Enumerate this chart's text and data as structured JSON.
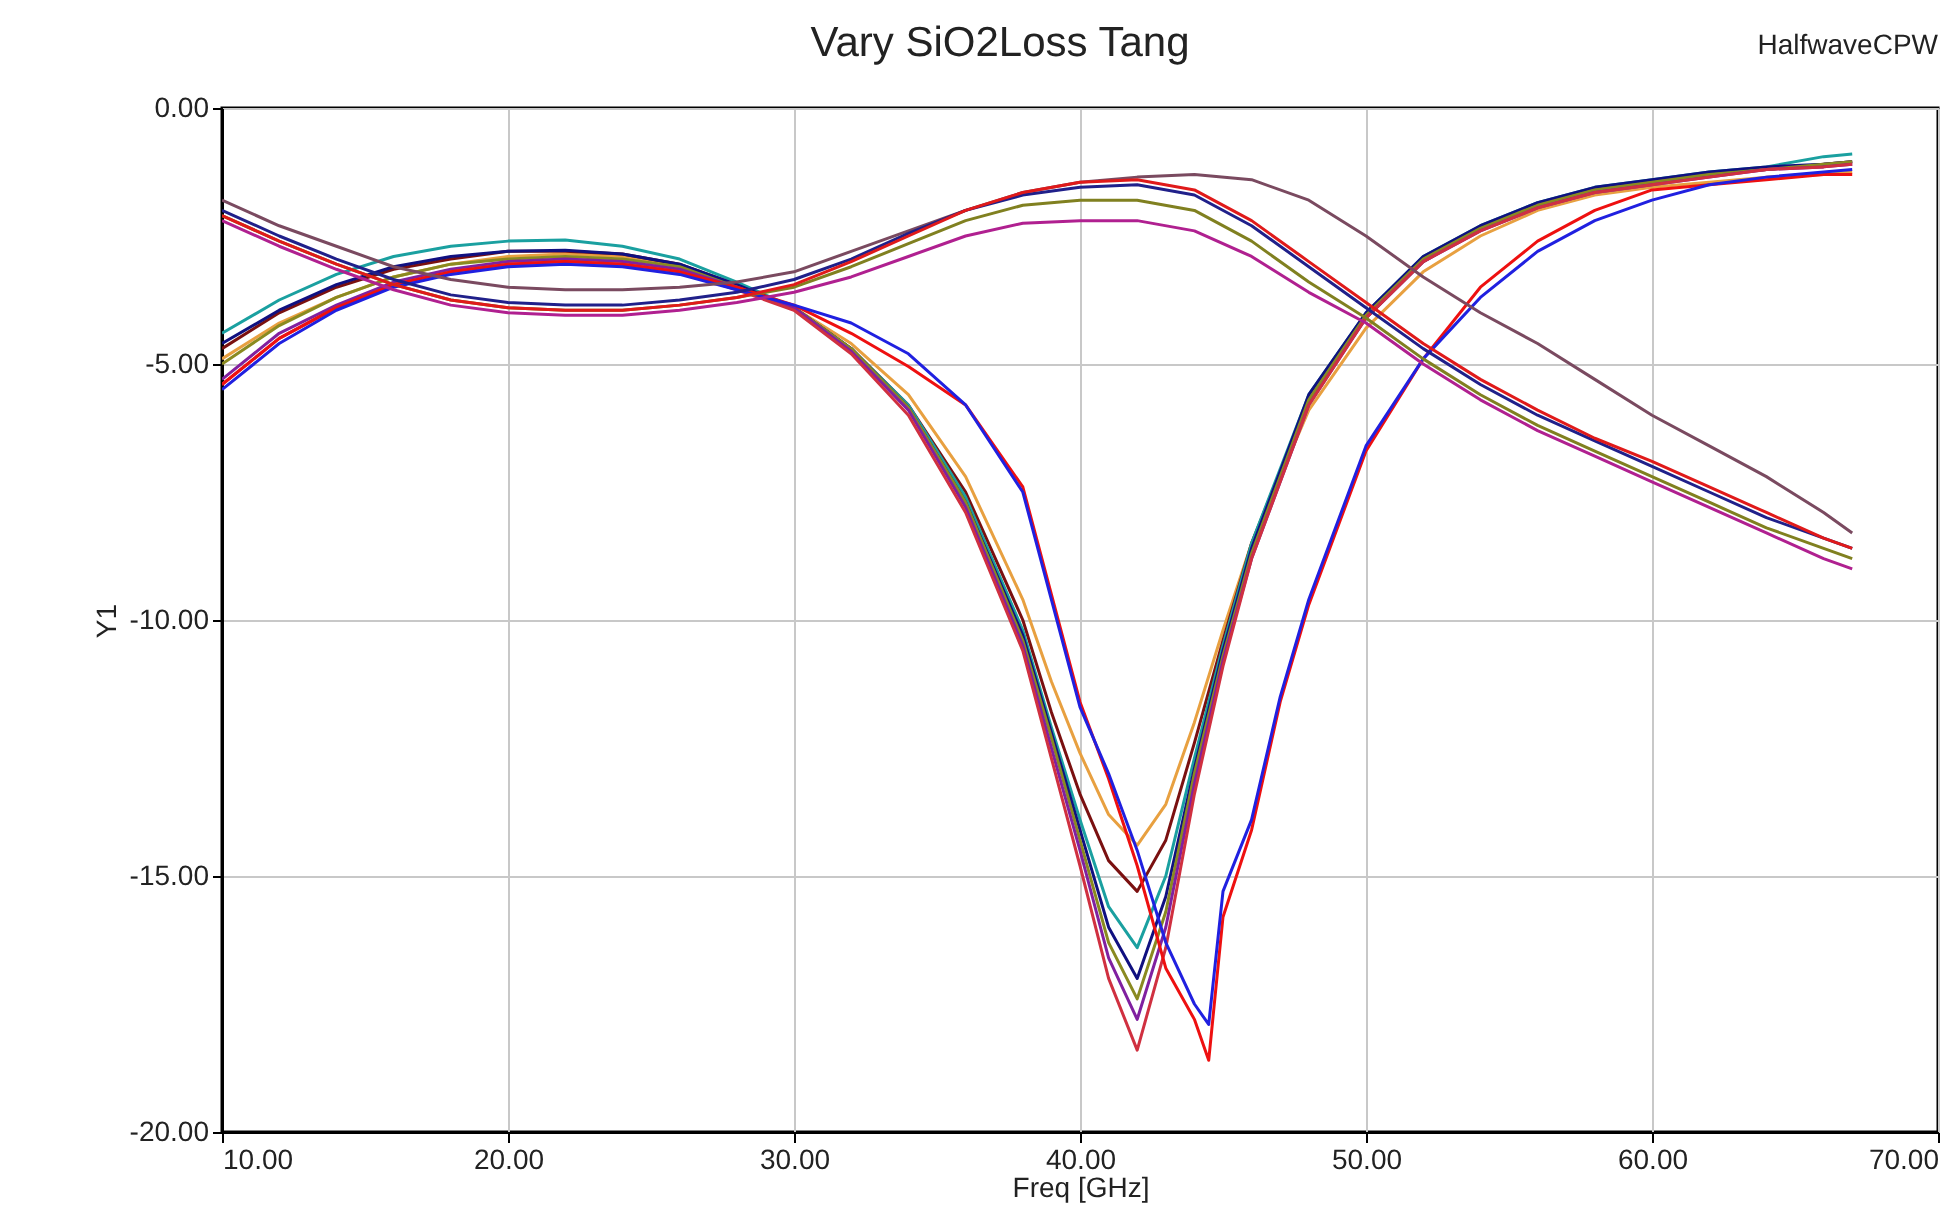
{
  "chart_data": {
    "type": "line",
    "title": "Vary SiO2Loss Tang",
    "xlabel": "Freq [GHz]",
    "ylabel": "Y1",
    "annotations": [
      "HalfwaveCPW"
    ],
    "xlim": [
      10,
      70
    ],
    "ylim": [
      -20,
      0
    ],
    "xticks": [
      {
        "value": 10,
        "label": "10.00"
      },
      {
        "value": 20,
        "label": "20.00"
      },
      {
        "value": 30,
        "label": "30.00"
      },
      {
        "value": 40,
        "label": "40.00"
      },
      {
        "value": 50,
        "label": "50.00"
      },
      {
        "value": 60,
        "label": "60.00"
      },
      {
        "value": 70,
        "label": "70.00"
      }
    ],
    "yticks": [
      {
        "value": -20,
        "label": "-20.00"
      },
      {
        "value": -15,
        "label": "-15.00"
      },
      {
        "value": -10,
        "label": "-10.00"
      },
      {
        "value": -5,
        "label": "-5.00"
      },
      {
        "value": 0,
        "label": "0.00"
      }
    ],
    "grid": true,
    "legend": false,
    "marker": "none",
    "line_style": "solid",
    "series": [
      {
        "color": "#e8a040",
        "x": [
          10,
          12,
          14,
          16,
          18,
          20,
          22,
          24,
          26,
          28,
          30,
          32,
          34,
          36,
          38,
          39,
          40,
          41,
          42,
          43,
          44,
          45,
          46,
          48,
          50,
          52,
          54,
          56,
          58,
          60,
          62,
          64,
          66,
          67
        ],
        "values": [
          -4.9,
          -4.2,
          -3.7,
          -3.3,
          -3.05,
          -2.9,
          -2.85,
          -2.9,
          -3.1,
          -3.5,
          -3.9,
          -4.6,
          -5.6,
          -7.2,
          -9.6,
          -11.2,
          -12.6,
          -13.8,
          -14.4,
          -13.6,
          -12.0,
          -10.2,
          -8.5,
          -5.9,
          -4.3,
          -3.2,
          -2.5,
          -2.0,
          -1.7,
          -1.55,
          -1.45,
          -1.35,
          -1.3,
          -1.25
        ]
      },
      {
        "color": "#7a1010",
        "x": [
          10,
          12,
          14,
          16,
          18,
          20,
          22,
          24,
          26,
          28,
          30,
          32,
          34,
          36,
          38,
          39,
          40,
          41,
          42,
          43,
          44,
          45,
          46,
          48,
          50,
          52,
          54,
          56,
          58,
          60,
          62,
          64,
          66,
          67
        ],
        "values": [
          -4.7,
          -4.0,
          -3.5,
          -3.15,
          -2.95,
          -2.8,
          -2.8,
          -2.85,
          -3.05,
          -3.45,
          -3.9,
          -4.7,
          -5.8,
          -7.5,
          -10.0,
          -11.8,
          -13.4,
          -14.7,
          -15.3,
          -14.3,
          -12.4,
          -10.4,
          -8.5,
          -5.7,
          -4.1,
          -3.0,
          -2.35,
          -1.9,
          -1.6,
          -1.45,
          -1.3,
          -1.2,
          -1.1,
          -1.05
        ]
      },
      {
        "color": "#1aa0a0",
        "x": [
          10,
          12,
          14,
          16,
          18,
          20,
          22,
          24,
          26,
          28,
          30,
          32,
          34,
          36,
          38,
          39,
          40,
          41,
          42,
          43,
          44,
          45,
          46,
          48,
          50,
          52,
          54,
          56,
          58,
          60,
          62,
          64,
          66,
          67
        ],
        "values": [
          -4.4,
          -3.75,
          -3.25,
          -2.9,
          -2.7,
          -2.6,
          -2.58,
          -2.7,
          -2.95,
          -3.4,
          -3.9,
          -4.7,
          -5.8,
          -7.6,
          -10.2,
          -12.1,
          -13.9,
          -15.6,
          -16.4,
          -15.0,
          -12.7,
          -10.5,
          -8.5,
          -5.6,
          -4.0,
          -2.9,
          -2.3,
          -1.85,
          -1.55,
          -1.4,
          -1.25,
          -1.15,
          -0.95,
          -0.9
        ]
      },
      {
        "color": "#101080",
        "x": [
          10,
          12,
          14,
          16,
          18,
          20,
          22,
          24,
          26,
          28,
          30,
          32,
          34,
          36,
          38,
          39,
          40,
          41,
          42,
          43,
          44,
          45,
          46,
          48,
          50,
          52,
          54,
          56,
          58,
          60,
          62,
          64,
          66,
          67
        ],
        "values": [
          -4.6,
          -3.95,
          -3.45,
          -3.1,
          -2.9,
          -2.8,
          -2.78,
          -2.85,
          -3.05,
          -3.45,
          -3.9,
          -4.7,
          -5.85,
          -7.7,
          -10.3,
          -12.2,
          -14.1,
          -16.0,
          -17.0,
          -15.4,
          -12.9,
          -10.6,
          -8.6,
          -5.6,
          -4.0,
          -2.9,
          -2.3,
          -1.85,
          -1.55,
          -1.4,
          -1.25,
          -1.15,
          -1.1,
          -1.05
        ]
      },
      {
        "color": "#8a8a20",
        "x": [
          10,
          12,
          14,
          16,
          18,
          20,
          22,
          24,
          26,
          28,
          30,
          32,
          34,
          36,
          38,
          39,
          40,
          41,
          42,
          43,
          44,
          45,
          46,
          48,
          50,
          52,
          54,
          56,
          58,
          60,
          62,
          64,
          66,
          67
        ],
        "values": [
          -5.0,
          -4.25,
          -3.7,
          -3.3,
          -3.05,
          -2.95,
          -2.9,
          -2.95,
          -3.1,
          -3.5,
          -3.9,
          -4.7,
          -5.85,
          -7.7,
          -10.4,
          -12.3,
          -14.3,
          -16.3,
          -17.4,
          -15.7,
          -13.0,
          -10.7,
          -8.7,
          -5.7,
          -4.05,
          -2.95,
          -2.35,
          -1.9,
          -1.6,
          -1.45,
          -1.3,
          -1.2,
          -1.1,
          -1.05
        ]
      },
      {
        "color": "#8020a0",
        "x": [
          10,
          12,
          14,
          16,
          18,
          20,
          22,
          24,
          26,
          28,
          30,
          32,
          34,
          36,
          38,
          39,
          40,
          41,
          42,
          43,
          44,
          45,
          46,
          48,
          50,
          52,
          54,
          56,
          58,
          60,
          62,
          64,
          66,
          67
        ],
        "values": [
          -5.3,
          -4.4,
          -3.85,
          -3.4,
          -3.15,
          -3.0,
          -2.95,
          -3.0,
          -3.15,
          -3.5,
          -3.9,
          -4.75,
          -5.9,
          -7.8,
          -10.5,
          -12.5,
          -14.5,
          -16.6,
          -17.8,
          -16.0,
          -13.2,
          -10.8,
          -8.8,
          -5.8,
          -4.1,
          -3.0,
          -2.4,
          -1.95,
          -1.65,
          -1.5,
          -1.35,
          -1.2,
          -1.15,
          -1.1
        ]
      },
      {
        "color": "#d03040",
        "x": [
          10,
          12,
          14,
          16,
          18,
          20,
          22,
          24,
          26,
          28,
          30,
          32,
          34,
          36,
          38,
          39,
          40,
          41,
          42,
          43,
          44,
          45,
          46,
          48,
          50,
          52,
          54,
          56,
          58,
          60,
          62,
          64,
          66,
          67
        ],
        "values": [
          -5.4,
          -4.5,
          -3.9,
          -3.45,
          -3.2,
          -3.05,
          -3.0,
          -3.05,
          -3.2,
          -3.55,
          -3.95,
          -4.8,
          -6.0,
          -7.9,
          -10.6,
          -12.7,
          -14.8,
          -17.0,
          -18.4,
          -16.4,
          -13.4,
          -10.9,
          -8.8,
          -5.8,
          -4.1,
          -3.0,
          -2.4,
          -1.95,
          -1.65,
          -1.5,
          -1.35,
          -1.2,
          -1.15,
          -1.1
        ]
      },
      {
        "color": "#ee1010",
        "x": [
          10,
          12,
          14,
          16,
          18,
          20,
          22,
          24,
          26,
          28,
          30,
          32,
          34,
          36,
          38,
          39,
          40,
          41,
          42,
          43,
          44,
          44.5,
          45,
          46,
          47,
          48,
          50,
          52,
          54,
          56,
          58,
          60,
          62,
          64,
          66,
          67
        ],
        "values": [
          -5.4,
          -4.5,
          -3.9,
          -3.45,
          -3.2,
          -3.05,
          -3.0,
          -3.05,
          -3.2,
          -3.5,
          -3.85,
          -4.4,
          -5.05,
          -5.8,
          -7.4,
          -9.5,
          -11.6,
          -13.1,
          -14.8,
          -16.8,
          -17.8,
          -18.6,
          -15.8,
          -14.1,
          -11.6,
          -9.7,
          -6.7,
          -4.9,
          -3.5,
          -2.6,
          -2.0,
          -1.6,
          -1.5,
          -1.4,
          -1.3,
          -1.3
        ]
      },
      {
        "color": "#2020e0",
        "x": [
          10,
          12,
          14,
          16,
          18,
          20,
          22,
          24,
          26,
          28,
          30,
          32,
          34,
          36,
          38,
          39,
          40,
          41,
          42,
          43,
          44,
          44.5,
          45,
          46,
          47,
          48,
          50,
          52,
          54,
          56,
          58,
          60,
          62,
          64,
          66,
          67
        ],
        "values": [
          -5.5,
          -4.6,
          -3.95,
          -3.5,
          -3.25,
          -3.1,
          -3.05,
          -3.1,
          -3.25,
          -3.55,
          -3.85,
          -4.2,
          -4.8,
          -5.8,
          -7.5,
          -9.6,
          -11.7,
          -13.0,
          -14.5,
          -16.3,
          -17.5,
          -17.9,
          -15.3,
          -13.9,
          -11.5,
          -9.6,
          -6.6,
          -4.9,
          -3.7,
          -2.8,
          -2.2,
          -1.8,
          -1.5,
          -1.35,
          -1.25,
          -1.2
        ]
      },
      {
        "color": "#7a4a60",
        "x": [
          10,
          12,
          14,
          16,
          18,
          20,
          22,
          24,
          26,
          28,
          30,
          32,
          34,
          36,
          38,
          40,
          42,
          44,
          46,
          48,
          50,
          52,
          54,
          56,
          58,
          60,
          62,
          64,
          66,
          67
        ],
        "values": [
          -1.8,
          -2.3,
          -2.7,
          -3.1,
          -3.35,
          -3.5,
          -3.55,
          -3.55,
          -3.5,
          -3.4,
          -3.2,
          -2.8,
          -2.4,
          -2.0,
          -1.65,
          -1.45,
          -1.35,
          -1.3,
          -1.4,
          -1.8,
          -2.5,
          -3.3,
          -4.0,
          -4.6,
          -5.3,
          -6.0,
          -6.6,
          -7.2,
          -7.9,
          -8.3
        ]
      },
      {
        "color": "#808020",
        "x": [
          10,
          12,
          14,
          16,
          18,
          20,
          22,
          24,
          26,
          28,
          30,
          32,
          34,
          36,
          38,
          40,
          42,
          44,
          46,
          48,
          50,
          52,
          54,
          56,
          58,
          60,
          62,
          64,
          66,
          67
        ],
        "values": [
          -2.1,
          -2.6,
          -3.05,
          -3.45,
          -3.75,
          -3.9,
          -3.95,
          -3.95,
          -3.85,
          -3.7,
          -3.5,
          -3.1,
          -2.65,
          -2.2,
          -1.9,
          -1.8,
          -1.8,
          -2.0,
          -2.6,
          -3.4,
          -4.1,
          -4.9,
          -5.6,
          -6.2,
          -6.7,
          -7.2,
          -7.7,
          -8.2,
          -8.6,
          -8.8
        ]
      },
      {
        "color": "#b02090",
        "x": [
          10,
          12,
          14,
          16,
          18,
          20,
          22,
          24,
          26,
          28,
          30,
          32,
          34,
          36,
          38,
          40,
          42,
          44,
          46,
          48,
          50,
          52,
          54,
          56,
          58,
          60,
          62,
          64,
          66,
          67
        ],
        "values": [
          -2.2,
          -2.7,
          -3.15,
          -3.55,
          -3.85,
          -4.0,
          -4.05,
          -4.05,
          -3.95,
          -3.8,
          -3.6,
          -3.3,
          -2.9,
          -2.5,
          -2.25,
          -2.2,
          -2.2,
          -2.4,
          -2.9,
          -3.6,
          -4.2,
          -5.0,
          -5.7,
          -6.3,
          -6.8,
          -7.3,
          -7.8,
          -8.3,
          -8.8,
          -9.0
        ]
      },
      {
        "color": "#20208a",
        "x": [
          10,
          12,
          14,
          16,
          18,
          20,
          22,
          24,
          26,
          28,
          30,
          32,
          34,
          36,
          38,
          40,
          42,
          44,
          46,
          48,
          50,
          52,
          54,
          56,
          58,
          60,
          62,
          64,
          66,
          67
        ],
        "values": [
          -2.0,
          -2.5,
          -2.95,
          -3.35,
          -3.65,
          -3.8,
          -3.85,
          -3.85,
          -3.75,
          -3.6,
          -3.35,
          -2.95,
          -2.45,
          -2.0,
          -1.7,
          -1.55,
          -1.5,
          -1.7,
          -2.3,
          -3.1,
          -3.9,
          -4.7,
          -5.4,
          -6.0,
          -6.5,
          -7.0,
          -7.5,
          -8.0,
          -8.4,
          -8.6
        ]
      },
      {
        "color": "#e01a1a",
        "x": [
          10,
          12,
          14,
          16,
          18,
          20,
          22,
          24,
          26,
          28,
          30,
          32,
          34,
          36,
          38,
          40,
          42,
          44,
          46,
          48,
          50,
          52,
          54,
          56,
          58,
          60,
          62,
          64,
          66,
          67
        ],
        "values": [
          -2.1,
          -2.6,
          -3.05,
          -3.45,
          -3.75,
          -3.9,
          -3.95,
          -3.95,
          -3.85,
          -3.7,
          -3.45,
          -3.0,
          -2.5,
          -2.0,
          -1.65,
          -1.45,
          -1.4,
          -1.6,
          -2.2,
          -3.0,
          -3.8,
          -4.6,
          -5.3,
          -5.9,
          -6.45,
          -6.9,
          -7.4,
          -7.9,
          -8.4,
          -8.6
        ]
      }
    ]
  }
}
